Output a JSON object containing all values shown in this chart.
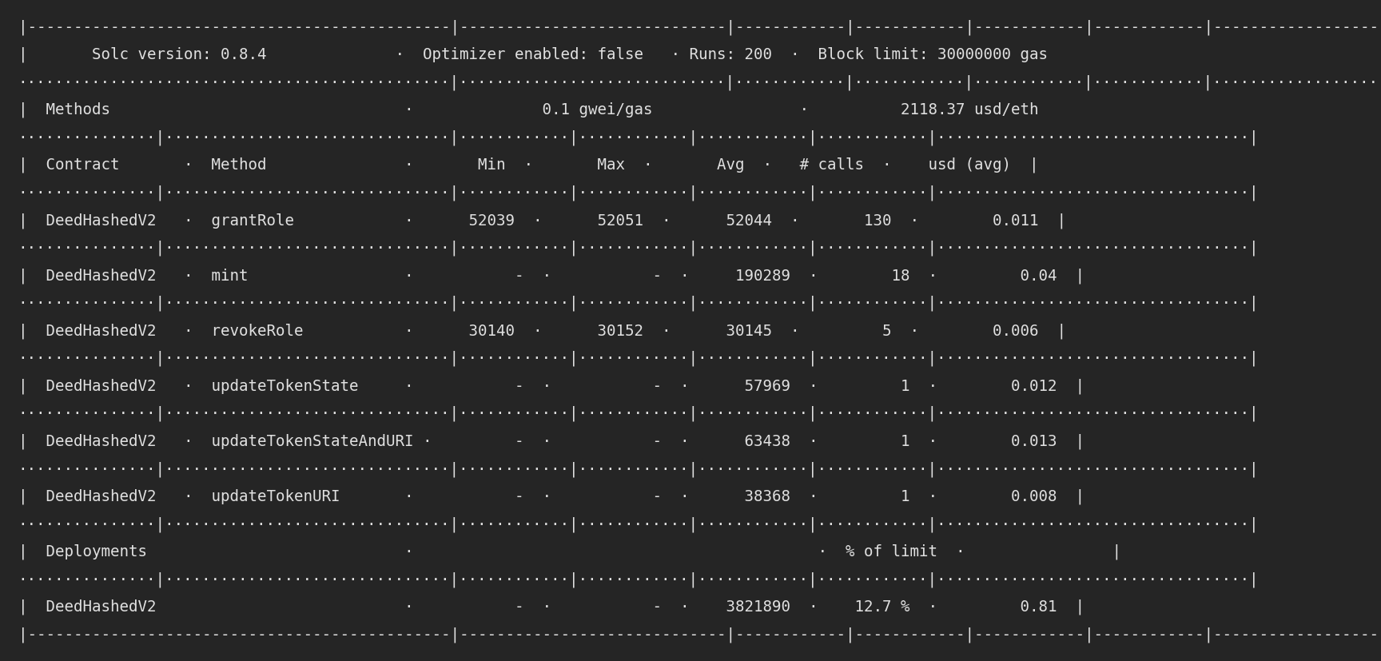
{
  "bg_color": "#252525",
  "text_color": "#e0e0e0",
  "font_size": 13.8,
  "lines": [
    "|----------------------------------------------|-----------------------------|------------|------------|------------|------------|----------------------------------|",
    "|         Solc version: 0.8.4                  ·  Optimizer enabled: false   · Runs: 200  ·  Block limit: 30000000 gas                                       |",
    "·············································|·····························|············|············|············|············|··································|",
    "|  Methods                                     ·          0.1 gwei/gas               ·                    2118.37 usd/eth                                   |",
    "··············|······························|·············|··············|············|············|··································|",
    "|  Contract       ·  Method                    ·       Min  ·       Max  ·       Avg  ·   # calls  ·   usd (avg)  |",
    "··············|······························|·············|··············|············|············|··············|",
    "|  DeedHashedV2   ·  grantRole                 ·     52039  ·     52051  ·     52044  ·       130  ·      0.011  |",
    "··············|······························|·············|··············|············|············|··············|",
    "|  DeedHashedV2   ·  mint                      ·          -  ·          -  ·    190289  ·        18  ·       0.04  |",
    "··············|······························|·············|··············|············|············|··············|",
    "|  DeedHashedV2   ·  revokeRole                ·     30140  ·     30152  ·     30145  ·         5  ·      0.006  |",
    "··············|······························|·············|··············|············|············|··············|",
    "|  DeedHashedV2   ·  updateTokenState          ·          -  ·          -  ·     57969  ·         1  ·      0.012  |",
    "··············|······························|·············|··············|············|············|··············|",
    "|  DeedHashedV2   ·  updateTokenStateAndURI    ·          -  ·          -  ·     63438  ·         1  ·      0.013  |",
    "··············|······························|·············|··············|············|············|··············|",
    "|  DeedHashedV2   ·  updateTokenURI            ·          -  ·          -  ·     38368  ·         1  ·      0.008  |",
    "··············|······························|·············|··············|············|············|··············|",
    "|  Deployments                                 ·                                        ·  % of limit  ·              |",
    "··············|······························|·············|··············|············|············|··············|",
    "|  DeedHashedV2                                ·          -  ·          -  ·   3821890  ·    12.7 %  ·       0.81  |",
    "|----------------------------------------------|-----------------------------|------------|------------|------------|------------|----------------------------------|"
  ]
}
